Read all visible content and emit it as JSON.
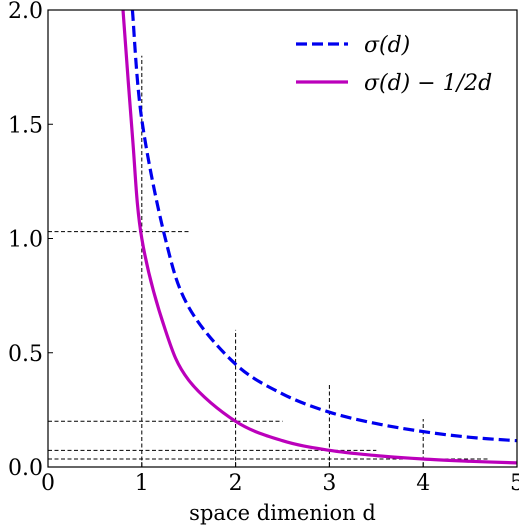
{
  "chart_data": {
    "type": "line",
    "xlabel": "space dimenion d",
    "ylabel": "",
    "xlim": [
      0,
      5
    ],
    "ylim": [
      0,
      2
    ],
    "xticks": [
      0,
      1,
      2,
      3,
      4,
      5
    ],
    "yticks": [
      0.0,
      0.5,
      1.0,
      1.5,
      2.0
    ],
    "xtick_labels": [
      "0",
      "1",
      "2",
      "3",
      "4",
      "5"
    ],
    "ytick_labels": [
      "0.0",
      "0.5",
      "1.0",
      "1.5",
      "2.0"
    ],
    "grid": false,
    "legend_position": "top-right",
    "series": [
      {
        "name": "σ(d)",
        "style": "dashed",
        "color": "#0000ee",
        "x": [
          0.9,
          1.0,
          1.25,
          1.5,
          2.0,
          2.5,
          3.0,
          3.5,
          4.0,
          4.5,
          5.0
        ],
        "y": [
          2.0,
          1.52,
          1.0,
          0.7,
          0.45,
          0.32,
          0.24,
          0.19,
          0.155,
          0.13,
          0.115
        ]
      },
      {
        "name": "σ(d) − 1/2d",
        "style": "solid",
        "color": "#bb00bb",
        "x": [
          0.8,
          0.9,
          1.0,
          1.25,
          1.5,
          2.0,
          2.5,
          3.0,
          3.5,
          4.0,
          4.5,
          5.0
        ],
        "y": [
          2.0,
          1.45,
          1.0,
          0.6,
          0.38,
          0.2,
          0.115,
          0.073,
          0.05,
          0.035,
          0.025,
          0.018
        ]
      }
    ],
    "reference_lines": [
      {
        "axis": "vertical",
        "x": 1,
        "y_to": 1.8
      },
      {
        "axis": "vertical",
        "x": 2,
        "y_to": 0.6
      },
      {
        "axis": "vertical",
        "x": 3,
        "y_to": 0.36
      },
      {
        "axis": "vertical",
        "x": 4,
        "y_to": 0.21
      },
      {
        "axis": "horizontal",
        "y": 1.03,
        "x_to": 1.5
      },
      {
        "axis": "horizontal",
        "y": 0.2,
        "x_to": 2.5
      },
      {
        "axis": "horizontal",
        "y": 0.073,
        "x_to": 3.5
      },
      {
        "axis": "horizontal",
        "y": 0.035,
        "x_to": 4.7
      }
    ]
  }
}
